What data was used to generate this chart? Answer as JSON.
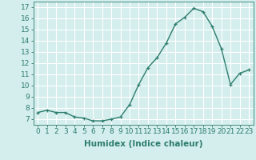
{
  "xlabel": "Humidex (Indice chaleur)",
  "x": [
    0,
    1,
    2,
    3,
    4,
    5,
    6,
    7,
    8,
    9,
    10,
    11,
    12,
    13,
    14,
    15,
    16,
    17,
    18,
    19,
    20,
    21,
    22,
    23
  ],
  "y": [
    7.6,
    7.8,
    7.6,
    7.6,
    7.2,
    7.1,
    6.85,
    6.85,
    7.0,
    7.2,
    8.3,
    10.1,
    11.6,
    12.5,
    13.8,
    15.5,
    16.1,
    16.9,
    16.6,
    15.3,
    13.3,
    10.1,
    11.1,
    11.4
  ],
  "line_color": "#2e7d6e",
  "marker": "+",
  "marker_size": 3,
  "background_color": "#d4eeed",
  "grid_color": "#ffffff",
  "xlim": [
    -0.5,
    23.5
  ],
  "ylim": [
    6.5,
    17.5
  ],
  "yticks": [
    7,
    8,
    9,
    10,
    11,
    12,
    13,
    14,
    15,
    16,
    17
  ],
  "xticks": [
    0,
    1,
    2,
    3,
    4,
    5,
    6,
    7,
    8,
    9,
    10,
    11,
    12,
    13,
    14,
    15,
    16,
    17,
    18,
    19,
    20,
    21,
    22,
    23
  ],
  "tick_color": "#2e7d6e",
  "label_fontsize": 6.5,
  "xlabel_fontsize": 7.5,
  "line_width": 1.0,
  "marker_edge_width": 0.9
}
